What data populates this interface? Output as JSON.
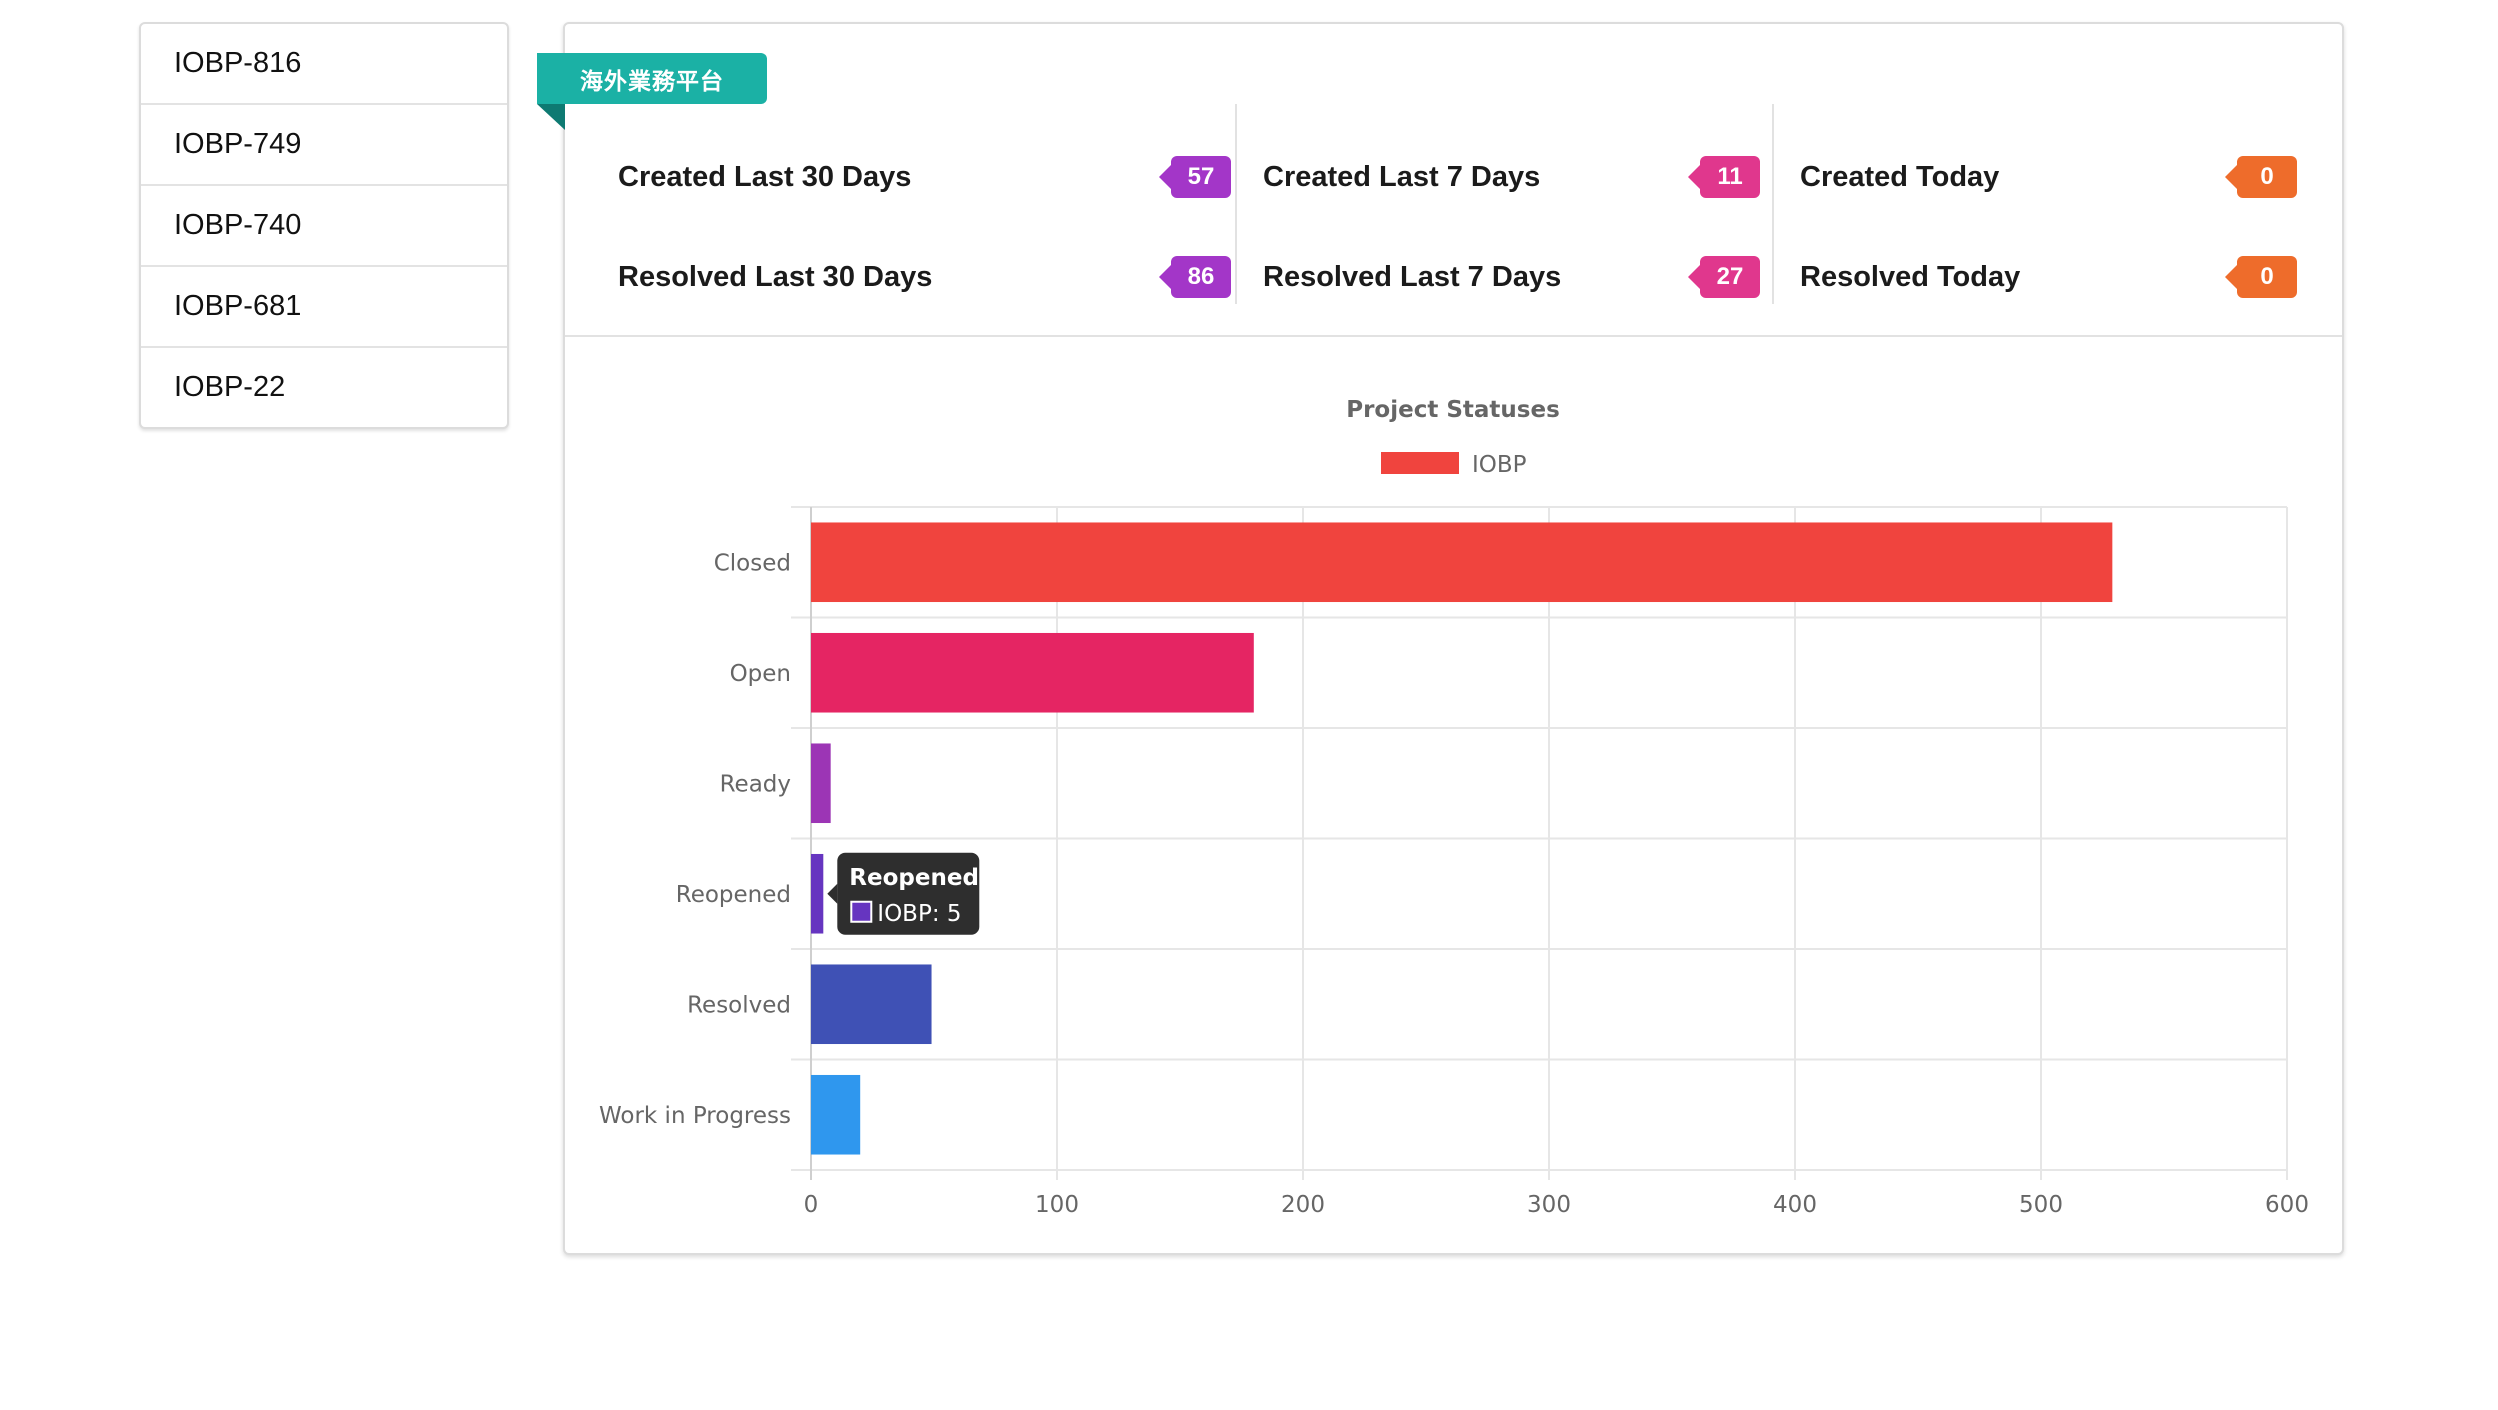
{
  "issues": [
    "IOBP-816",
    "IOBP-749",
    "IOBP-740",
    "IOBP-681",
    "IOBP-22"
  ],
  "ribbon": {
    "label": "海外業務平台",
    "color": "#1bb1a5"
  },
  "stats": {
    "created_30": {
      "label": "Created Last 30 Days",
      "value": "57",
      "color": "#a336c8"
    },
    "resolved_30": {
      "label": "Resolved Last 30 Days",
      "value": "86",
      "color": "#a336c8"
    },
    "created_7": {
      "label": "Created Last 7 Days",
      "value": "11",
      "color": "#e0378d"
    },
    "resolved_7": {
      "label": "Resolved Last 7 Days",
      "value": "27",
      "color": "#e0378d"
    },
    "created_today": {
      "label": "Created Today",
      "value": "0",
      "color": "#ee6c2b"
    },
    "resolved_today": {
      "label": "Resolved Today",
      "value": "0",
      "color": "#ee6c2b"
    }
  },
  "chart_data": {
    "type": "bar",
    "orientation": "horizontal",
    "title": "Project Statuses",
    "categories": [
      "Closed",
      "Open",
      "Ready",
      "Reopened",
      "Resolved",
      "Work in Progress"
    ],
    "series": [
      {
        "name": "IOBP",
        "values": [
          529,
          180,
          8,
          5,
          49,
          20
        ]
      }
    ],
    "bar_colors": [
      "#f0443e",
      "#e52563",
      "#9c35b5",
      "#6635c0",
      "#3f51b5",
      "#2f97ee"
    ],
    "legend_color": "#f0443e",
    "xlim": [
      0,
      600
    ],
    "xticks": [
      0,
      100,
      200,
      300,
      400,
      500,
      600
    ],
    "grid": true,
    "legend_position": "top",
    "tooltip": {
      "title": "Reopened",
      "body": "IOBP: 5",
      "swatch_color": "#6635c0"
    }
  }
}
